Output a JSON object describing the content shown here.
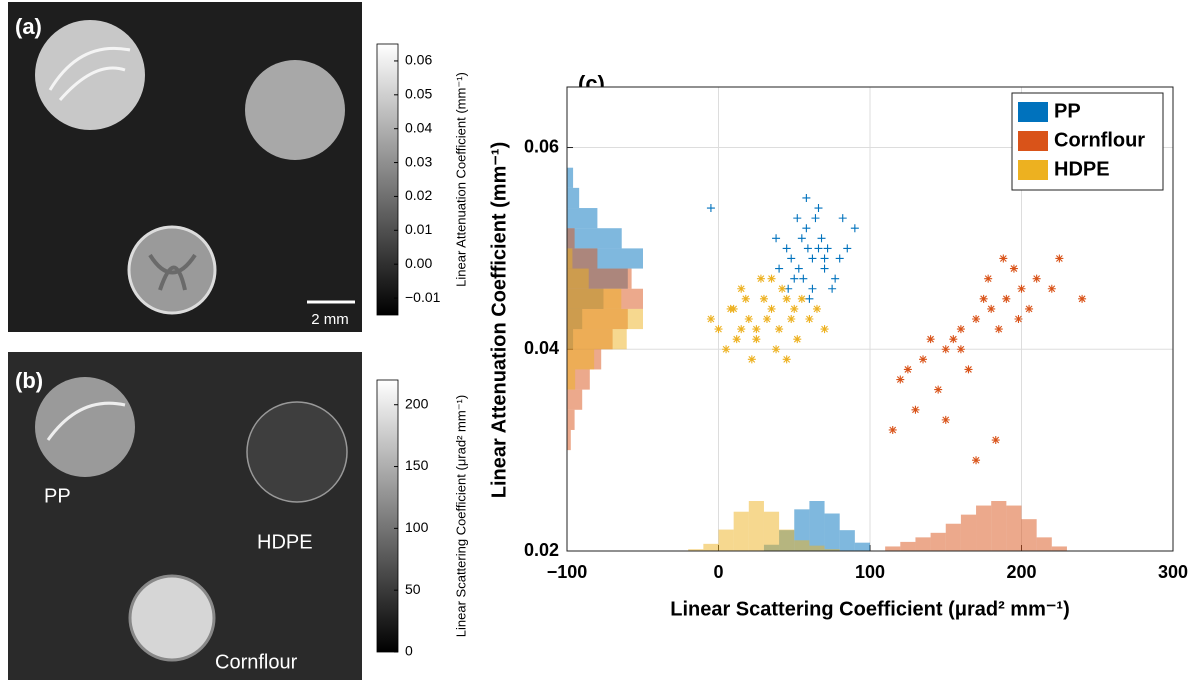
{
  "chart_data": [
    {
      "type": "image",
      "label": "(a)",
      "colorbar_label": "Linear Attenuation Coefficient (mm⁻¹)",
      "ylim": [
        -0.015,
        0.065
      ],
      "yticks": [
        {
          "value": -0.01,
          "label": "−0.01"
        },
        {
          "value": 0,
          "label": "0.00"
        },
        0.01,
        0.02,
        0.03,
        0.04,
        0.05,
        0.06
      ],
      "scale_bar": "2 mm"
    },
    {
      "type": "image",
      "label": "(b)",
      "colorbar_label": "Linear Scattering Coefficient (μrad² mm⁻¹)",
      "ylim": [
        0,
        220
      ],
      "yticks": [
        0,
        50,
        100,
        150,
        200
      ],
      "annotations": [
        "PP",
        "HDPE",
        "Cornflour"
      ]
    },
    {
      "type": "scatter",
      "label": "(c)",
      "x_label": "Linear Scattering Coefficient (μrad² mm⁻¹)",
      "y_label": "Linear Attenuation Coefficient (mm⁻¹)",
      "xlim": [
        -100,
        300
      ],
      "xticks": [
        {
          "value": -100,
          "label": "−100"
        },
        0,
        100,
        200,
        300
      ],
      "ylim": [
        0.02,
        0.066
      ],
      "yticks": [
        0.02,
        0.04,
        0.06
      ],
      "grid": true,
      "legend": "upper-right",
      "series": [
        {
          "name": "PP",
          "color": "#0072bd",
          "marker": "+",
          "x": [
            45,
            55,
            62,
            70,
            50,
            58,
            66,
            75,
            80,
            40,
            52,
            60,
            68,
            85,
            48,
            56,
            64,
            72,
            38,
            90,
            58,
            62,
            53,
            77,
            66,
            46,
            70,
            59,
            82,
            -5
          ],
          "values": [
            0.05,
            0.051,
            0.049,
            0.048,
            0.047,
            0.052,
            0.05,
            0.046,
            0.049,
            0.048,
            0.053,
            0.045,
            0.051,
            0.05,
            0.049,
            0.047,
            0.053,
            0.05,
            0.051,
            0.052,
            0.055,
            0.046,
            0.048,
            0.047,
            0.054,
            0.046,
            0.049,
            0.05,
            0.053,
            0.054
          ],
          "x_hist": {
            "bins": [
              30,
              40,
              50,
              60,
              70,
              80,
              90,
              100
            ],
            "counts": [
              3,
              10,
              20,
              24,
              18,
              10,
              4
            ]
          },
          "y_hist": {
            "bins": [
              0.04,
              0.042,
              0.044,
              0.046,
              0.048,
              0.05,
              0.052,
              0.054,
              0.056,
              0.058
            ],
            "counts": [
              2,
              5,
              12,
              20,
              25,
              18,
              10,
              4,
              2
            ]
          }
        },
        {
          "name": "Cornflour",
          "color": "#d95319",
          "marker": "*",
          "x": [
            120,
            135,
            150,
            160,
            170,
            180,
            190,
            200,
            210,
            220,
            145,
            155,
            165,
            175,
            185,
            195,
            205,
            130,
            140,
            160,
            178,
            188,
            198,
            115,
            125,
            150,
            170,
            225,
            240,
            183
          ],
          "values": [
            0.037,
            0.039,
            0.04,
            0.042,
            0.043,
            0.044,
            0.045,
            0.046,
            0.047,
            0.046,
            0.036,
            0.041,
            0.038,
            0.045,
            0.042,
            0.048,
            0.044,
            0.034,
            0.041,
            0.04,
            0.047,
            0.049,
            0.043,
            0.032,
            0.038,
            0.033,
            0.029,
            0.049,
            0.045,
            0.031
          ],
          "x_hist": {
            "bins": [
              110,
              120,
              130,
              140,
              150,
              160,
              170,
              180,
              190,
              200,
              210,
              220,
              230
            ],
            "counts": [
              2,
              4,
              6,
              8,
              12,
              16,
              20,
              22,
              20,
              14,
              6,
              2
            ]
          },
          "y_hist": {
            "bins": [
              0.03,
              0.032,
              0.034,
              0.036,
              0.038,
              0.04,
              0.042,
              0.044,
              0.046,
              0.048,
              0.05,
              0.052
            ],
            "counts": [
              1,
              2,
              4,
              6,
              9,
              12,
              16,
              20,
              17,
              8,
              2
            ]
          }
        },
        {
          "name": "HDPE",
          "color": "#edb120",
          "marker": "*",
          "x": [
            0,
            10,
            20,
            30,
            40,
            50,
            60,
            5,
            15,
            25,
            35,
            45,
            55,
            70,
            -5,
            12,
            22,
            32,
            42,
            52,
            18,
            28,
            38,
            8,
            48,
            65,
            25,
            35,
            15,
            45
          ],
          "values": [
            0.042,
            0.044,
            0.043,
            0.045,
            0.042,
            0.044,
            0.043,
            0.04,
            0.046,
            0.041,
            0.047,
            0.039,
            0.045,
            0.042,
            0.043,
            0.041,
            0.039,
            0.043,
            0.046,
            0.041,
            0.045,
            0.047,
            0.04,
            0.044,
            0.043,
            0.044,
            0.042,
            0.044,
            0.042,
            0.045
          ],
          "x_hist": {
            "bins": [
              -20,
              -10,
              0,
              10,
              20,
              30,
              40,
              50,
              60,
              70,
              80
            ],
            "counts": [
              1,
              4,
              12,
              22,
              28,
              22,
              12,
              6,
              3,
              1
            ]
          },
          "y_hist": {
            "bins": [
              0.036,
              0.038,
              0.04,
              0.042,
              0.044,
              0.046,
              0.048,
              0.05
            ],
            "counts": [
              3,
              10,
              22,
              28,
              20,
              8,
              2
            ]
          }
        }
      ]
    }
  ]
}
